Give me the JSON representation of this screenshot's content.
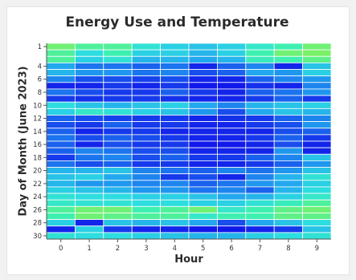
{
  "chart_data": {
    "type": "heatmap",
    "title": "Energy Use and Temperature",
    "xlabel": "Hour",
    "ylabel": "Day of Month (June 2023)",
    "x": [
      0,
      1,
      2,
      3,
      4,
      5,
      6,
      7,
      8,
      9
    ],
    "y_ticks": [
      1,
      4,
      6,
      8,
      10,
      12,
      14,
      16,
      18,
      20,
      22,
      24,
      26,
      28,
      30
    ],
    "color_scale": [
      "#1010e8",
      "#1a62ee",
      "#22a8ee",
      "#2ddde0",
      "#3ef0b0",
      "#80f060"
    ],
    "rows": [
      {
        "day": 1,
        "values": [
          0.95,
          0.85,
          0.85,
          0.65,
          0.55,
          0.5,
          0.55,
          0.7,
          0.8,
          0.95
        ]
      },
      {
        "day": 2,
        "values": [
          0.85,
          0.6,
          0.8,
          0.55,
          0.55,
          0.45,
          0.55,
          0.8,
          0.95,
          0.98
        ]
      },
      {
        "day": 3,
        "values": [
          0.85,
          0.55,
          0.65,
          0.45,
          0.45,
          0.4,
          0.45,
          0.75,
          0.8,
          0.9
        ]
      },
      {
        "day": 4,
        "values": [
          0.4,
          0.25,
          0.25,
          0.2,
          0.25,
          0.05,
          0.2,
          0.3,
          0.05,
          0.5
        ]
      },
      {
        "day": 5,
        "values": [
          0.45,
          0.35,
          0.35,
          0.25,
          0.3,
          0.15,
          0.2,
          0.4,
          0.35,
          0.55
        ]
      },
      {
        "day": 6,
        "values": [
          0.3,
          0.15,
          0.15,
          0.12,
          0.15,
          0.05,
          0.05,
          0.2,
          0.3,
          0.35
        ]
      },
      {
        "day": 7,
        "values": [
          0.05,
          0.05,
          0.1,
          0.05,
          0.1,
          0.02,
          0.02,
          0.08,
          0.05,
          0.3
        ]
      },
      {
        "day": 8,
        "values": [
          0.25,
          0.15,
          0.1,
          0.1,
          0.2,
          0.1,
          0.05,
          0.2,
          0.25,
          0.35
        ]
      },
      {
        "day": 9,
        "values": [
          0.1,
          0.08,
          0.1,
          0.1,
          0.08,
          0.05,
          0.05,
          0.1,
          0.2,
          0.1
        ]
      },
      {
        "day": 10,
        "values": [
          0.6,
          0.5,
          0.45,
          0.5,
          0.55,
          0.4,
          0.3,
          0.45,
          0.5,
          0.55
        ]
      },
      {
        "day": 11,
        "values": [
          0.55,
          0.7,
          0.65,
          0.55,
          0.5,
          0.35,
          0.15,
          0.4,
          0.5,
          0.45
        ]
      },
      {
        "day": 12,
        "values": [
          0.2,
          0.15,
          0.12,
          0.1,
          0.1,
          0.05,
          0.08,
          0.1,
          0.2,
          0.3
        ]
      },
      {
        "day": 13,
        "values": [
          0.15,
          0.1,
          0.2,
          0.1,
          0.1,
          0.05,
          0.05,
          0.1,
          0.15,
          0.35
        ]
      },
      {
        "day": 14,
        "values": [
          0.2,
          0.05,
          0.1,
          0.1,
          0.05,
          0.05,
          0.05,
          0.05,
          0.15,
          0.2
        ]
      },
      {
        "day": 15,
        "values": [
          0.25,
          0.15,
          0.2,
          0.15,
          0.1,
          0.05,
          0.05,
          0.1,
          0.2,
          0.1
        ]
      },
      {
        "day": 16,
        "values": [
          0.2,
          0.05,
          0.15,
          0.1,
          0.1,
          0.02,
          0.02,
          0.05,
          0.15,
          0.05
        ]
      },
      {
        "day": 17,
        "values": [
          0.2,
          0.3,
          0.25,
          0.15,
          0.15,
          0.05,
          0.05,
          0.05,
          0.35,
          0.05
        ]
      },
      {
        "day": 18,
        "values": [
          0.1,
          0.25,
          0.3,
          0.15,
          0.2,
          0.1,
          0.1,
          0.2,
          0.3,
          0.5
        ]
      },
      {
        "day": 19,
        "values": [
          0.25,
          0.15,
          0.2,
          0.1,
          0.1,
          0.05,
          0.05,
          0.1,
          0.2,
          0.35
        ]
      },
      {
        "day": 20,
        "values": [
          0.45,
          0.45,
          0.5,
          0.3,
          0.25,
          0.2,
          0.3,
          0.25,
          0.35,
          0.5
        ]
      },
      {
        "day": 21,
        "values": [
          0.5,
          0.55,
          0.4,
          0.3,
          0.1,
          0.15,
          0.05,
          0.3,
          0.45,
          0.65
        ]
      },
      {
        "day": 22,
        "values": [
          0.45,
          0.35,
          0.35,
          0.3,
          0.3,
          0.2,
          0.25,
          0.35,
          0.4,
          0.55
        ]
      },
      {
        "day": 23,
        "values": [
          0.55,
          0.5,
          0.45,
          0.35,
          0.35,
          0.25,
          0.3,
          0.2,
          0.45,
          0.6
        ]
      },
      {
        "day": 24,
        "values": [
          0.65,
          0.6,
          0.6,
          0.55,
          0.55,
          0.5,
          0.4,
          0.45,
          0.55,
          0.7
        ]
      },
      {
        "day": 25,
        "values": [
          0.7,
          0.65,
          0.65,
          0.6,
          0.6,
          0.55,
          0.55,
          0.65,
          0.75,
          0.85
        ]
      },
      {
        "day": 26,
        "values": [
          0.85,
          0.95,
          0.95,
          0.8,
          0.85,
          0.95,
          0.7,
          0.8,
          0.9,
          0.95
        ]
      },
      {
        "day": 27,
        "values": [
          0.8,
          0.95,
          0.9,
          0.85,
          0.85,
          0.7,
          0.8,
          0.8,
          0.9,
          0.9
        ]
      },
      {
        "day": 28,
        "values": [
          0.55,
          0.05,
          0.5,
          0.45,
          0.5,
          0.4,
          0.15,
          0.4,
          0.5,
          0.6
        ]
      },
      {
        "day": 29,
        "values": [
          0.05,
          0.55,
          0.1,
          0.05,
          0.05,
          0.02,
          0.02,
          0.05,
          0.1,
          0.5
        ]
      },
      {
        "day": 30,
        "values": [
          0.65,
          0.6,
          0.6,
          0.55,
          0.5,
          0.45,
          0.45,
          0.55,
          0.6,
          0.65
        ]
      }
    ]
  }
}
